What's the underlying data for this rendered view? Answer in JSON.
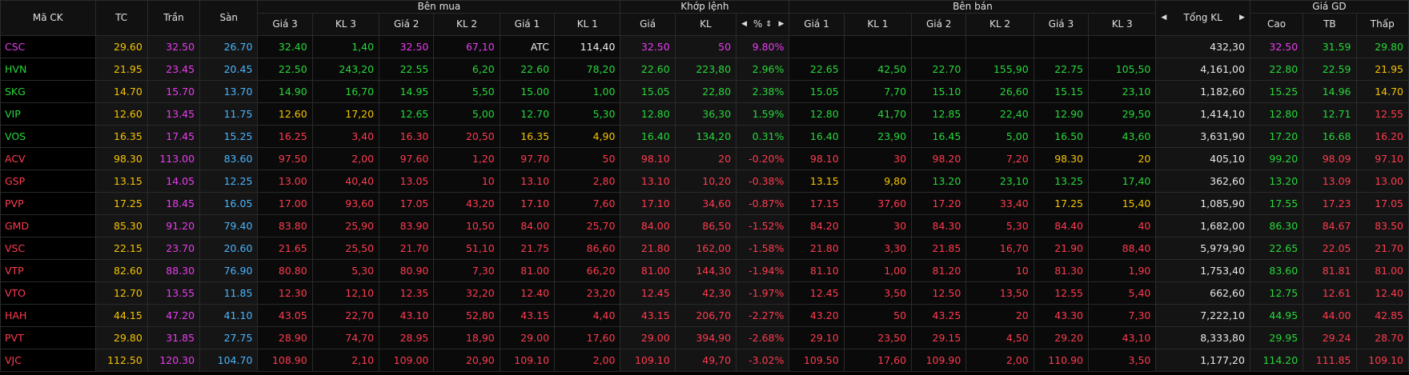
{
  "header": {
    "symbol": "Mã CK",
    "ref": "TC",
    "ceiling": "Trần",
    "floor": "Sàn",
    "buy_group": "Bên mua",
    "match_group": "Khớp lệnh",
    "sell_group": "Bên bán",
    "total": "Tổng KL",
    "hl_group": "Giá GD",
    "price3": "Giá 3",
    "vol3": "KL 3",
    "price2": "Giá 2",
    "vol2": "KL 2",
    "price1": "Giá 1",
    "vol1": "KL 1",
    "match_price": "Giá",
    "match_vol": "KL",
    "match_pct": "%",
    "high": "Cao",
    "avg": "TB",
    "low": "Thấp"
  },
  "icons": {
    "arrow_left": "◀",
    "arrow_right": "▶",
    "sort": "⇕"
  },
  "colors": {
    "up": "#27d83a",
    "down": "#ff3b4f",
    "reference": "#f5c400",
    "ceiling": "#e93cf0",
    "floor": "#4ab5ff"
  },
  "rows": [
    {
      "sym": "CSC",
      "st": "ceil",
      "ref": "29.60",
      "ceil": "32.50",
      "floor": "26.70",
      "b3": [
        "32.40",
        "1,40",
        "up"
      ],
      "b2": [
        "32.50",
        "67,10",
        "ceil"
      ],
      "b1": [
        "ATC",
        "114,40",
        "wht"
      ],
      "m": [
        "32.50",
        "50",
        "9.80%",
        "ceil"
      ],
      "s1": [
        "",
        "",
        ""
      ],
      "s2": [
        "",
        "",
        ""
      ],
      "s3": [
        "",
        "",
        ""
      ],
      "total": "432,30",
      "high": [
        "32.50",
        "ceil"
      ],
      "avg": [
        "31.59",
        "up"
      ],
      "low": [
        "29.80",
        "up"
      ]
    },
    {
      "sym": "HVN",
      "st": "up",
      "ref": "21.95",
      "ceil": "23.45",
      "floor": "20.45",
      "b3": [
        "22.50",
        "243,20",
        "up"
      ],
      "b2": [
        "22.55",
        "6,20",
        "up"
      ],
      "b1": [
        "22.60",
        "78,20",
        "up"
      ],
      "m": [
        "22.60",
        "223,80",
        "2.96%",
        "up"
      ],
      "s1": [
        "22.65",
        "42,50",
        "up"
      ],
      "s2": [
        "22.70",
        "155,90",
        "up"
      ],
      "s3": [
        "22.75",
        "105,50",
        "up"
      ],
      "total": "4,161,00",
      "high": [
        "22.80",
        "up"
      ],
      "avg": [
        "22.59",
        "up"
      ],
      "low": [
        "21.95",
        "ref"
      ]
    },
    {
      "sym": "SKG",
      "st": "up",
      "ref": "14.70",
      "ceil": "15.70",
      "floor": "13.70",
      "b3": [
        "14.90",
        "16,70",
        "up"
      ],
      "b2": [
        "14.95",
        "5,50",
        "up"
      ],
      "b1": [
        "15.00",
        "1,00",
        "up"
      ],
      "m": [
        "15.05",
        "22,80",
        "2.38%",
        "up"
      ],
      "s1": [
        "15.05",
        "7,70",
        "up"
      ],
      "s2": [
        "15.10",
        "26,60",
        "up"
      ],
      "s3": [
        "15.15",
        "23,10",
        "up"
      ],
      "total": "1,182,60",
      "high": [
        "15.25",
        "up"
      ],
      "avg": [
        "14.96",
        "up"
      ],
      "low": [
        "14.70",
        "ref"
      ]
    },
    {
      "sym": "VIP",
      "st": "up",
      "ref": "12.60",
      "ceil": "13.45",
      "floor": "11.75",
      "b3": [
        "12.60",
        "17,20",
        "ref"
      ],
      "b2": [
        "12.65",
        "5,00",
        "up"
      ],
      "b1": [
        "12.70",
        "5,30",
        "up"
      ],
      "m": [
        "12.80",
        "36,30",
        "1.59%",
        "up"
      ],
      "s1": [
        "12.80",
        "41,70",
        "up"
      ],
      "s2": [
        "12.85",
        "22,40",
        "up"
      ],
      "s3": [
        "12.90",
        "29,50",
        "up"
      ],
      "total": "1,414,10",
      "high": [
        "12.80",
        "up"
      ],
      "avg": [
        "12.71",
        "up"
      ],
      "low": [
        "12.55",
        "down"
      ]
    },
    {
      "sym": "VOS",
      "st": "up",
      "ref": "16.35",
      "ceil": "17.45",
      "floor": "15.25",
      "b3": [
        "16.25",
        "3,40",
        "down"
      ],
      "b2": [
        "16.30",
        "20,50",
        "down"
      ],
      "b1": [
        "16.35",
        "4,90",
        "ref"
      ],
      "m": [
        "16.40",
        "134,20",
        "0.31%",
        "up"
      ],
      "s1": [
        "16.40",
        "23,90",
        "up"
      ],
      "s2": [
        "16.45",
        "5,00",
        "up"
      ],
      "s3": [
        "16.50",
        "43,60",
        "up"
      ],
      "total": "3,631,90",
      "high": [
        "17.20",
        "up"
      ],
      "avg": [
        "16.68",
        "up"
      ],
      "low": [
        "16.20",
        "down"
      ]
    },
    {
      "sym": "ACV",
      "st": "down",
      "ref": "98.30",
      "ceil": "113.00",
      "floor": "83.60",
      "b3": [
        "97.50",
        "2,00",
        "down"
      ],
      "b2": [
        "97.60",
        "1,20",
        "down"
      ],
      "b1": [
        "97.70",
        "50",
        "down"
      ],
      "m": [
        "98.10",
        "20",
        "-0.20%",
        "down"
      ],
      "s1": [
        "98.10",
        "30",
        "down"
      ],
      "s2": [
        "98.20",
        "7,20",
        "down"
      ],
      "s3": [
        "98.30",
        "20",
        "ref"
      ],
      "total": "405,10",
      "high": [
        "99.20",
        "up"
      ],
      "avg": [
        "98.09",
        "down"
      ],
      "low": [
        "97.10",
        "down"
      ]
    },
    {
      "sym": "GSP",
      "st": "down",
      "ref": "13.15",
      "ceil": "14.05",
      "floor": "12.25",
      "b3": [
        "13.00",
        "40,40",
        "down"
      ],
      "b2": [
        "13.05",
        "10",
        "down"
      ],
      "b1": [
        "13.10",
        "2,80",
        "down"
      ],
      "m": [
        "13.10",
        "10,20",
        "-0.38%",
        "down"
      ],
      "s1": [
        "13.15",
        "9,80",
        "ref"
      ],
      "s2": [
        "13.20",
        "23,10",
        "up"
      ],
      "s3": [
        "13.25",
        "17,40",
        "up"
      ],
      "total": "362,60",
      "high": [
        "13.20",
        "up"
      ],
      "avg": [
        "13.09",
        "down"
      ],
      "low": [
        "13.00",
        "down"
      ]
    },
    {
      "sym": "PVP",
      "st": "down",
      "ref": "17.25",
      "ceil": "18.45",
      "floor": "16.05",
      "b3": [
        "17.00",
        "93,60",
        "down"
      ],
      "b2": [
        "17.05",
        "43,20",
        "down"
      ],
      "b1": [
        "17.10",
        "7,60",
        "down"
      ],
      "m": [
        "17.10",
        "34,60",
        "-0.87%",
        "down"
      ],
      "s1": [
        "17.15",
        "37,60",
        "down"
      ],
      "s2": [
        "17.20",
        "33,40",
        "down"
      ],
      "s3": [
        "17.25",
        "15,40",
        "ref"
      ],
      "total": "1,085,90",
      "high": [
        "17.55",
        "up"
      ],
      "avg": [
        "17.23",
        "down"
      ],
      "low": [
        "17.05",
        "down"
      ]
    },
    {
      "sym": "GMD",
      "st": "down",
      "ref": "85.30",
      "ceil": "91.20",
      "floor": "79.40",
      "b3": [
        "83.80",
        "25,90",
        "down"
      ],
      "b2": [
        "83.90",
        "10,50",
        "down"
      ],
      "b1": [
        "84.00",
        "25,70",
        "down"
      ],
      "m": [
        "84.00",
        "86,50",
        "-1.52%",
        "down"
      ],
      "s1": [
        "84.20",
        "30",
        "down"
      ],
      "s2": [
        "84.30",
        "5,30",
        "down"
      ],
      "s3": [
        "84.40",
        "40",
        "down"
      ],
      "total": "1,682,00",
      "high": [
        "86.30",
        "up"
      ],
      "avg": [
        "84.67",
        "down"
      ],
      "low": [
        "83.50",
        "down"
      ]
    },
    {
      "sym": "VSC",
      "st": "down",
      "ref": "22.15",
      "ceil": "23.70",
      "floor": "20.60",
      "b3": [
        "21.65",
        "25,50",
        "down"
      ],
      "b2": [
        "21.70",
        "51,10",
        "down"
      ],
      "b1": [
        "21.75",
        "86,60",
        "down"
      ],
      "m": [
        "21.80",
        "162,00",
        "-1.58%",
        "down"
      ],
      "s1": [
        "21.80",
        "3,30",
        "down"
      ],
      "s2": [
        "21.85",
        "16,70",
        "down"
      ],
      "s3": [
        "21.90",
        "88,40",
        "down"
      ],
      "total": "5,979,90",
      "high": [
        "22.65",
        "up"
      ],
      "avg": [
        "22.05",
        "down"
      ],
      "low": [
        "21.70",
        "down"
      ]
    },
    {
      "sym": "VTP",
      "st": "down",
      "ref": "82.60",
      "ceil": "88.30",
      "floor": "76.90",
      "b3": [
        "80.80",
        "5,30",
        "down"
      ],
      "b2": [
        "80.90",
        "7,30",
        "down"
      ],
      "b1": [
        "81.00",
        "66,20",
        "down"
      ],
      "m": [
        "81.00",
        "144,30",
        "-1.94%",
        "down"
      ],
      "s1": [
        "81.10",
        "1,00",
        "down"
      ],
      "s2": [
        "81.20",
        "10",
        "down"
      ],
      "s3": [
        "81.30",
        "1,90",
        "down"
      ],
      "total": "1,753,40",
      "high": [
        "83.60",
        "up"
      ],
      "avg": [
        "81.81",
        "down"
      ],
      "low": [
        "81.00",
        "down"
      ]
    },
    {
      "sym": "VTO",
      "st": "down",
      "ref": "12.70",
      "ceil": "13.55",
      "floor": "11.85",
      "b3": [
        "12.30",
        "12,10",
        "down"
      ],
      "b2": [
        "12.35",
        "32,20",
        "down"
      ],
      "b1": [
        "12.40",
        "23,20",
        "down"
      ],
      "m": [
        "12.45",
        "42,30",
        "-1.97%",
        "down"
      ],
      "s1": [
        "12.45",
        "3,50",
        "down"
      ],
      "s2": [
        "12.50",
        "13,50",
        "down"
      ],
      "s3": [
        "12.55",
        "5,40",
        "down"
      ],
      "total": "662,60",
      "high": [
        "12.75",
        "up"
      ],
      "avg": [
        "12.61",
        "down"
      ],
      "low": [
        "12.40",
        "down"
      ]
    },
    {
      "sym": "HAH",
      "st": "down",
      "ref": "44.15",
      "ceil": "47.20",
      "floor": "41.10",
      "b3": [
        "43.05",
        "22,70",
        "down"
      ],
      "b2": [
        "43.10",
        "52,80",
        "down"
      ],
      "b1": [
        "43.15",
        "4,40",
        "down"
      ],
      "m": [
        "43.15",
        "206,70",
        "-2.27%",
        "down"
      ],
      "s1": [
        "43.20",
        "50",
        "down"
      ],
      "s2": [
        "43.25",
        "20",
        "down"
      ],
      "s3": [
        "43.30",
        "7,30",
        "down"
      ],
      "total": "7,222,10",
      "high": [
        "44.95",
        "up"
      ],
      "avg": [
        "44.00",
        "down"
      ],
      "low": [
        "42.85",
        "down"
      ]
    },
    {
      "sym": "PVT",
      "st": "down",
      "ref": "29.80",
      "ceil": "31.85",
      "floor": "27.75",
      "b3": [
        "28.90",
        "74,70",
        "down"
      ],
      "b2": [
        "28.95",
        "18,90",
        "down"
      ],
      "b1": [
        "29.00",
        "17,60",
        "down"
      ],
      "m": [
        "29.00",
        "394,90",
        "-2.68%",
        "down"
      ],
      "s1": [
        "29.10",
        "23,50",
        "down"
      ],
      "s2": [
        "29.15",
        "4,50",
        "down"
      ],
      "s3": [
        "29.20",
        "43,10",
        "down"
      ],
      "total": "8,333,80",
      "high": [
        "29.95",
        "up"
      ],
      "avg": [
        "29.24",
        "down"
      ],
      "low": [
        "28.70",
        "down"
      ]
    },
    {
      "sym": "VJC",
      "st": "down",
      "ref": "112.50",
      "ceil": "120.30",
      "floor": "104.70",
      "b3": [
        "108.90",
        "2,10",
        "down"
      ],
      "b2": [
        "109.00",
        "20,90",
        "down"
      ],
      "b1": [
        "109.10",
        "2,00",
        "down"
      ],
      "m": [
        "109.10",
        "49,70",
        "-3.02%",
        "down"
      ],
      "s1": [
        "109.50",
        "17,60",
        "down"
      ],
      "s2": [
        "109.90",
        "2,00",
        "down"
      ],
      "s3": [
        "110.90",
        "3,50",
        "down"
      ],
      "total": "1,177,20",
      "high": [
        "114.20",
        "up"
      ],
      "avg": [
        "111.85",
        "down"
      ],
      "low": [
        "109.10",
        "down"
      ]
    }
  ]
}
